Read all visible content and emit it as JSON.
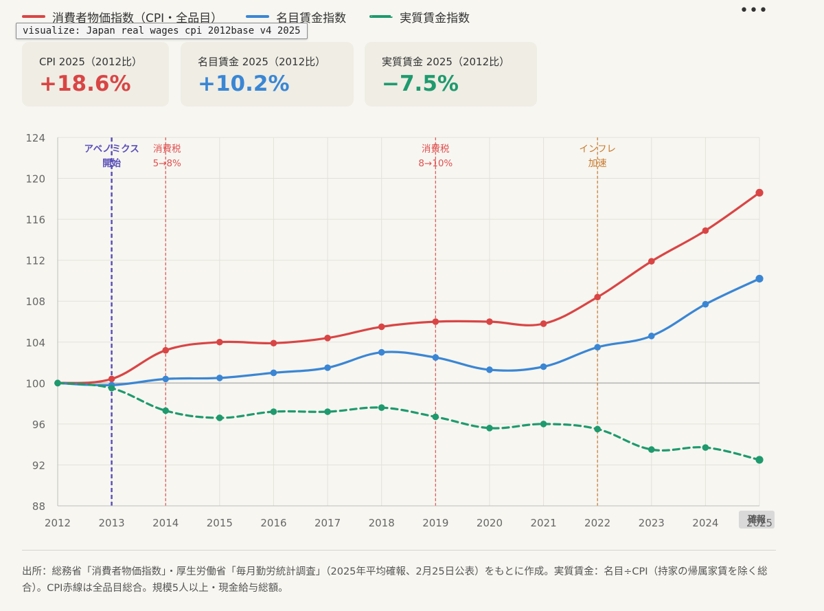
{
  "legend": [
    {
      "label": "消費者物価指数（CPI・全品目）",
      "color": "#d94545",
      "dashed": false
    },
    {
      "label": "名目賃金指数",
      "color": "#3a86d4",
      "dashed": false
    },
    {
      "label": "実質賃金指数",
      "color": "#1e9a6e",
      "dashed": true
    }
  ],
  "tooltip": "visualize: Japan real wages cpi 2012base v4 2025",
  "more_button": "•••",
  "stats": [
    {
      "label": "CPI 2025（2012比）",
      "value": "+18.6%",
      "color": "#d94545"
    },
    {
      "label": "名目賃金 2025（2012比）",
      "value": "+10.2%",
      "color": "#3a86d4"
    },
    {
      "label": "実質賃金 2025（2012比）",
      "value": "−7.5%",
      "color": "#1e9a6e"
    }
  ],
  "chart_data": {
    "type": "line",
    "x": [
      2012,
      2013,
      2014,
      2015,
      2016,
      2017,
      2018,
      2019,
      2020,
      2021,
      2022,
      2023,
      2024,
      2025
    ],
    "x_tick_labels": [
      "2012",
      "2013",
      "2014",
      "2015",
      "2016",
      "2017",
      "2018",
      "2019",
      "2020",
      "2021",
      "2022",
      "2023",
      "2024",
      "2025"
    ],
    "ylim": [
      88,
      124
    ],
    "y_ticks": [
      88,
      92,
      96,
      100,
      104,
      108,
      112,
      116,
      120,
      124
    ],
    "baseline": 100,
    "grid": true,
    "series": [
      {
        "key": "cpi",
        "values": [
          100.0,
          100.4,
          103.2,
          104.0,
          103.9,
          104.4,
          105.5,
          106.0,
          106.0,
          105.8,
          108.4,
          111.9,
          114.9,
          118.6
        ],
        "color": "#d94545",
        "dashed": false
      },
      {
        "key": "nominal",
        "values": [
          100.0,
          99.8,
          100.4,
          100.5,
          101.0,
          101.5,
          103.0,
          102.5,
          101.3,
          101.6,
          103.5,
          104.6,
          107.7,
          110.2
        ],
        "color": "#3a86d4",
        "dashed": false
      },
      {
        "key": "real",
        "values": [
          100.0,
          99.5,
          97.3,
          96.6,
          97.2,
          97.2,
          97.6,
          96.7,
          95.6,
          96.0,
          95.5,
          93.5,
          93.7,
          92.5
        ],
        "color": "#1e9a6e",
        "dashed": true
      }
    ],
    "annotations": [
      {
        "x": 2013,
        "lines": [
          "アベノミクス",
          "開始"
        ],
        "color": "#5a4fb8",
        "bold": true,
        "line_width": 2.5
      },
      {
        "x": 2014,
        "lines": [
          "消費税",
          "5→8%"
        ],
        "color": "#e05050",
        "bold": false,
        "line_width": 1.2
      },
      {
        "x": 2019,
        "lines": [
          "消費税",
          "8→10%"
        ],
        "color": "#e05050",
        "bold": false,
        "line_width": 1.2
      },
      {
        "x": 2022,
        "lines": [
          "インフレ",
          "加速"
        ],
        "color": "#c8782a",
        "bold": false,
        "line_width": 1.2
      }
    ],
    "point_badge": "確報"
  },
  "source": "出所：総務省「消費者物価指数」・厚生労働省「毎月勤労統計調査」（2025年平均確報、2月25日公表）をもとに作成。実質賃金：名目÷CPI（持家の帰属家賃を除く総合）。CPI赤線は全品目総合。規模5人以上・現金給与総額。"
}
